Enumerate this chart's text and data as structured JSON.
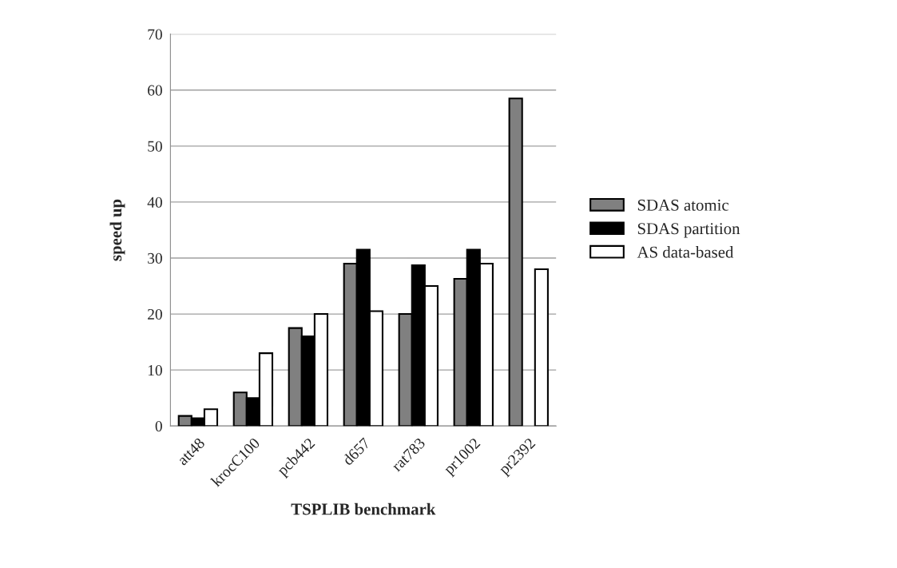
{
  "chart_data": {
    "type": "bar",
    "xlabel": "TSPLIB benchmark",
    "ylabel": "speed up",
    "categories": [
      "att48",
      "krocC100",
      "pcb442",
      "d657",
      "rat783",
      "pr1002",
      "pr2392"
    ],
    "series": [
      {
        "name": "SDAS atomic",
        "color": "#808080",
        "values": [
          1.8,
          6,
          17.5,
          29,
          20,
          26.3,
          58.5
        ]
      },
      {
        "name": "SDAS partition",
        "color": "#000000",
        "values": [
          1.4,
          5,
          16,
          31.5,
          28.7,
          31.5,
          null
        ]
      },
      {
        "name": "AS data-based",
        "color": "#ffffff",
        "values": [
          3,
          13,
          20,
          20.5,
          25,
          29,
          28
        ]
      }
    ],
    "ylim": [
      0,
      70
    ],
    "yticks": [
      0,
      10,
      20,
      30,
      40,
      50,
      60,
      70
    ],
    "grid": "y",
    "legend": "right"
  }
}
